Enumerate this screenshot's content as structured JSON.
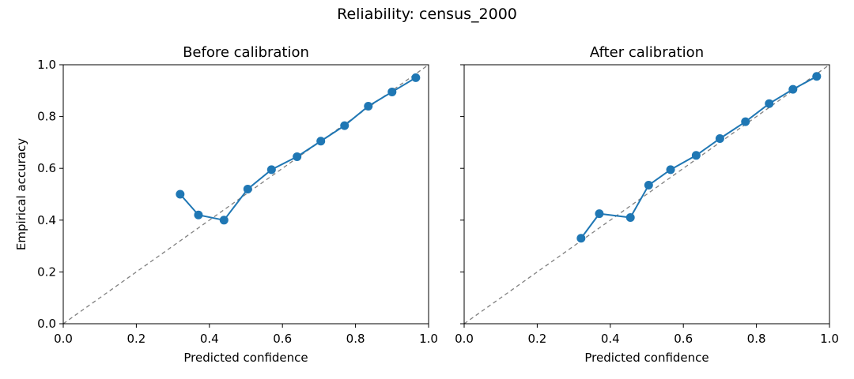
{
  "suptitle": "Reliability: census_2000",
  "colors": {
    "series": "#1f77b4",
    "diagonal": "#808080",
    "axis": "#000000"
  },
  "chart_data": [
    {
      "type": "line",
      "title": "Before calibration",
      "xlabel": "Predicted confidence",
      "ylabel": "Empirical accuracy",
      "xlim": [
        0.0,
        1.0
      ],
      "ylim": [
        0.0,
        1.0
      ],
      "xticks": [
        "0.0",
        "0.2",
        "0.4",
        "0.6",
        "0.8",
        "1.0"
      ],
      "yticks": [
        "0.0",
        "0.2",
        "0.4",
        "0.6",
        "0.8",
        "1.0"
      ],
      "show_yticklabels": true,
      "grid": false,
      "reference_line": {
        "style": "dashed",
        "x": [
          0.0,
          1.0
        ],
        "y": [
          0.0,
          1.0
        ]
      },
      "series": [
        {
          "marker": "circle",
          "x": [
            0.32,
            0.37,
            0.44,
            0.505,
            0.57,
            0.64,
            0.705,
            0.77,
            0.835,
            0.9,
            0.965
          ],
          "y": [
            0.5,
            0.42,
            0.4,
            0.52,
            0.595,
            0.645,
            0.705,
            0.765,
            0.84,
            0.895,
            0.95
          ]
        }
      ]
    },
    {
      "type": "line",
      "title": "After calibration",
      "xlabel": "Predicted confidence",
      "ylabel": "",
      "xlim": [
        0.0,
        1.0
      ],
      "ylim": [
        0.0,
        1.0
      ],
      "xticks": [
        "0.0",
        "0.2",
        "0.4",
        "0.6",
        "0.8",
        "1.0"
      ],
      "yticks": [
        "0.0",
        "0.2",
        "0.4",
        "0.6",
        "0.8",
        "1.0"
      ],
      "show_yticklabels": false,
      "grid": false,
      "reference_line": {
        "style": "dashed",
        "x": [
          0.0,
          1.0
        ],
        "y": [
          0.0,
          1.0
        ]
      },
      "series": [
        {
          "marker": "circle",
          "x": [
            0.32,
            0.37,
            0.455,
            0.505,
            0.565,
            0.635,
            0.7,
            0.77,
            0.835,
            0.9,
            0.965
          ],
          "y": [
            0.33,
            0.425,
            0.41,
            0.535,
            0.595,
            0.65,
            0.715,
            0.78,
            0.85,
            0.905,
            0.955
          ]
        }
      ]
    }
  ]
}
